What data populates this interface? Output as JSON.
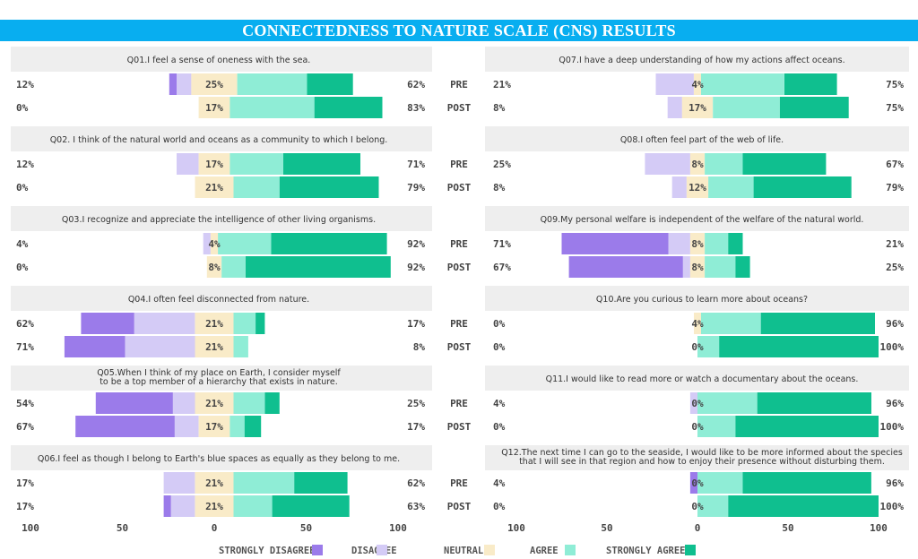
{
  "title": "CONNECTEDNESS TO NATURE SCALE (CNS) RESULTS",
  "colors": {
    "strongly_disagree": "#9b7bea",
    "disagree": "#d4cbf6",
    "neutral": "#f9ebc8",
    "agree": "#8fedd6",
    "strongly_agree": "#0fbf8f",
    "title_bg": "#08aef0",
    "header_bg": "#eeeeee"
  },
  "row_labels": [
    "PRE",
    "POST"
  ],
  "legend": [
    "STRONGLY DISAGREE",
    "DISAGREE",
    "NEUTRAL",
    "AGREE",
    "STRONGLY AGREE"
  ],
  "chart_data": {
    "type": "bar",
    "subtype": "diverging-stacked-likert",
    "categories_order": [
      "Strongly disagree",
      "Disagree",
      "Neutral",
      "Agree",
      "Strongly agree"
    ],
    "x_ticks": [
      "100",
      "50",
      "0",
      "50",
      "100"
    ],
    "xlim": [
      -100,
      100
    ],
    "questions": [
      {
        "text": [
          "Q01.I feel a sense of oneness with the sea."
        ],
        "rows": [
          {
            "label": "PRE",
            "left_pct": "12%",
            "neutral_pct": "25%",
            "right_pct": "62%",
            "values": [
              4,
              8,
              25,
              38,
              25
            ]
          },
          {
            "label": "POST",
            "left_pct": "0%",
            "neutral_pct": "17%",
            "right_pct": "83%",
            "values": [
              0,
              0,
              17,
              46,
              37
            ]
          }
        ]
      },
      {
        "text": [
          "Q02. I think of the natural world and oceans as a community to which I belong."
        ],
        "rows": [
          {
            "label": "PRE",
            "left_pct": "12%",
            "neutral_pct": "17%",
            "right_pct": "71%",
            "values": [
              0,
              12,
              17,
              29,
              42
            ]
          },
          {
            "label": "POST",
            "left_pct": "0%",
            "neutral_pct": "21%",
            "right_pct": "79%",
            "values": [
              0,
              0,
              21,
              25,
              54
            ]
          }
        ]
      },
      {
        "text": [
          "Q03.I recognize and appreciate the intelligence of other living organisms."
        ],
        "rows": [
          {
            "label": "PRE",
            "left_pct": "4%",
            "neutral_pct": "4%",
            "right_pct": "92%",
            "values": [
              0,
              4,
              4,
              29,
              63
            ]
          },
          {
            "label": "POST",
            "left_pct": "0%",
            "neutral_pct": "8%",
            "right_pct": "92%",
            "values": [
              0,
              0,
              8,
              13,
              79
            ]
          }
        ]
      },
      {
        "text": [
          "Q04.I often feel disconnected from nature."
        ],
        "rows": [
          {
            "label": "PRE",
            "left_pct": "62%",
            "neutral_pct": "21%",
            "right_pct": "17%",
            "values": [
              29,
              33,
              21,
              12,
              5
            ]
          },
          {
            "label": "POST",
            "left_pct": "71%",
            "neutral_pct": "21%",
            "right_pct": "8%",
            "values": [
              33,
              38,
              21,
              8,
              0
            ]
          }
        ]
      },
      {
        "text": [
          "Q05.When I think of my place on Earth, I consider myself",
          "to be a top member of a hierarchy that exists in nature."
        ],
        "rows": [
          {
            "label": "PRE",
            "left_pct": "54%",
            "neutral_pct": "21%",
            "right_pct": "25%",
            "values": [
              42,
              12,
              21,
              17,
              8
            ]
          },
          {
            "label": "POST",
            "left_pct": "67%",
            "neutral_pct": "17%",
            "right_pct": "17%",
            "values": [
              54,
              13,
              17,
              8,
              9
            ]
          }
        ]
      },
      {
        "text": [
          "Q06.I feel as though I belong to Earth's blue spaces as equally as they belong to me."
        ],
        "rows": [
          {
            "label": "PRE",
            "left_pct": "17%",
            "neutral_pct": "21%",
            "right_pct": "62%",
            "values": [
              0,
              17,
              21,
              33,
              29
            ]
          },
          {
            "label": "POST",
            "left_pct": "17%",
            "neutral_pct": "21%",
            "right_pct": "63%",
            "values": [
              4,
              13,
              21,
              21,
              42
            ]
          }
        ]
      },
      {
        "text": [
          "Q07.I have a deep understanding of how my actions affect oceans."
        ],
        "rows": [
          {
            "label": "PRE",
            "left_pct": "21%",
            "neutral_pct": "4%",
            "right_pct": "75%",
            "values": [
              0,
              21,
              4,
              46,
              29
            ]
          },
          {
            "label": "POST",
            "left_pct": "8%",
            "neutral_pct": "17%",
            "right_pct": "75%",
            "values": [
              0,
              8,
              17,
              37,
              38
            ]
          }
        ]
      },
      {
        "text": [
          "Q08.I often feel part of the web of life."
        ],
        "rows": [
          {
            "label": "PRE",
            "left_pct": "25%",
            "neutral_pct": "8%",
            "right_pct": "67%",
            "values": [
              0,
              25,
              8,
              21,
              46
            ]
          },
          {
            "label": "POST",
            "left_pct": "8%",
            "neutral_pct": "12%",
            "right_pct": "79%",
            "values": [
              0,
              8,
              12,
              25,
              54
            ]
          }
        ]
      },
      {
        "text": [
          "Q09.My personal welfare is independent of the welfare of the natural world."
        ],
        "rows": [
          {
            "label": "PRE",
            "left_pct": "71%",
            "neutral_pct": "8%",
            "right_pct": "21%",
            "values": [
              59,
              12,
              8,
              13,
              8
            ]
          },
          {
            "label": "POST",
            "left_pct": "67%",
            "neutral_pct": "8%",
            "right_pct": "25%",
            "values": [
              63,
              4,
              8,
              17,
              8
            ]
          }
        ]
      },
      {
        "text": [
          "Q10.Are you curious to learn more about oceans?"
        ],
        "rows": [
          {
            "label": "PRE",
            "left_pct": "0%",
            "neutral_pct": "4%",
            "right_pct": "96%",
            "values": [
              0,
              0,
              4,
              33,
              63
            ]
          },
          {
            "label": "POST",
            "left_pct": "0%",
            "neutral_pct": "0%",
            "right_pct": "100%",
            "values": [
              0,
              0,
              0,
              12,
              88
            ]
          }
        ]
      },
      {
        "text": [
          "Q11.I would like to read more or watch a documentary about the oceans."
        ],
        "rows": [
          {
            "label": "PRE",
            "left_pct": "4%",
            "neutral_pct": "0%",
            "right_pct": "96%",
            "values": [
              0,
              4,
              0,
              33,
              63
            ]
          },
          {
            "label": "POST",
            "left_pct": "0%",
            "neutral_pct": "0%",
            "right_pct": "100%",
            "values": [
              0,
              0,
              0,
              21,
              79
            ]
          }
        ]
      },
      {
        "text": [
          "Q12.The next time I can go to the seaside, I would like to be more informed about the species",
          "that I will see in that region and how to enjoy their presence without disturbing them."
        ],
        "rows": [
          {
            "label": "PRE",
            "left_pct": "4%",
            "neutral_pct": "0%",
            "right_pct": "96%",
            "values": [
              4,
              0,
              0,
              25,
              71
            ]
          },
          {
            "label": "POST",
            "left_pct": "0%",
            "neutral_pct": "0%",
            "right_pct": "100%",
            "values": [
              0,
              0,
              0,
              17,
              83
            ]
          }
        ]
      }
    ]
  }
}
